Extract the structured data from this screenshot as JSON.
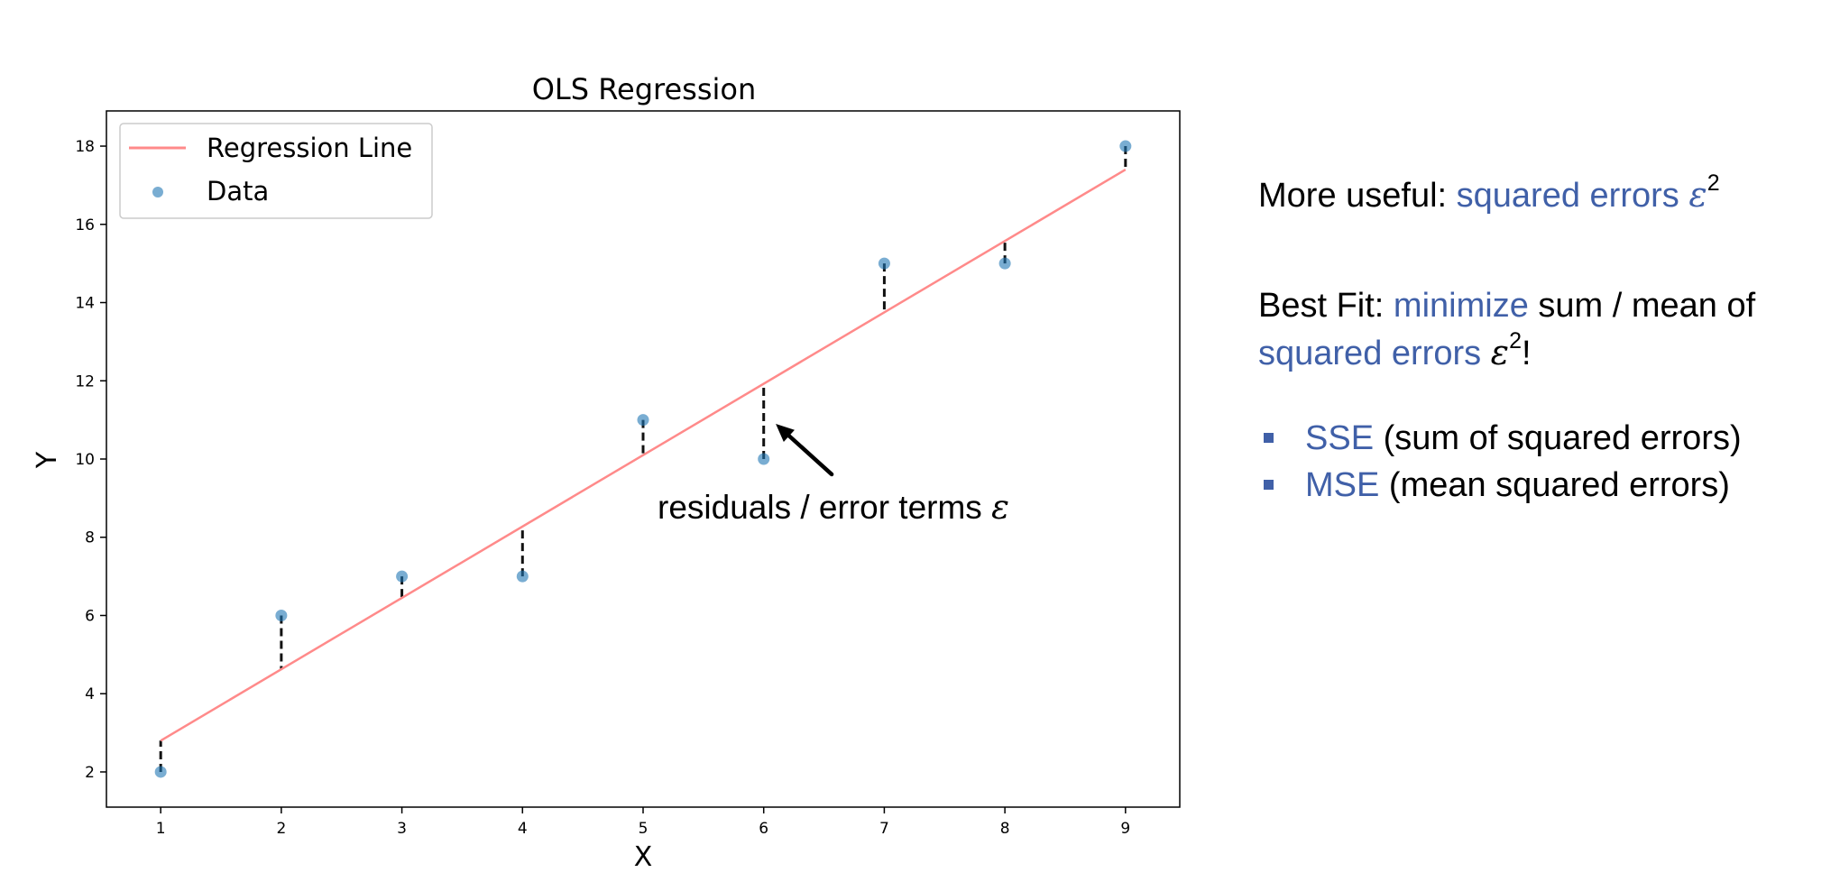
{
  "chart_data": {
    "type": "scatter",
    "title": "OLS Regression",
    "xlabel": "X",
    "ylabel": "Y",
    "xlim": [
      0.55,
      9.45
    ],
    "ylim": [
      1.1,
      18.9
    ],
    "xticks": [
      1,
      2,
      3,
      4,
      5,
      6,
      7,
      8,
      9
    ],
    "yticks": [
      2,
      4,
      6,
      8,
      10,
      12,
      14,
      16,
      18
    ],
    "grid": false,
    "legend_position": "top-left",
    "series": [
      {
        "name": "Data",
        "kind": "scatter",
        "color": "#1f77b4",
        "x": [
          1,
          2,
          3,
          4,
          5,
          6,
          7,
          8,
          9
        ],
        "y": [
          2,
          6,
          7,
          7,
          11,
          10,
          15,
          15,
          18
        ]
      },
      {
        "name": "Regression Line",
        "kind": "line",
        "color": "#ff8a8a",
        "x": [
          1,
          9
        ],
        "y": [
          2.8,
          17.4
        ]
      }
    ],
    "residuals": {
      "style": "dashed",
      "color": "#111111"
    },
    "annotation": {
      "text_prefix": "residuals / error terms ",
      "symbol": "ε",
      "points_to": [
        6.1,
        10.9
      ]
    }
  },
  "side": {
    "useful_prefix": "More useful: ",
    "useful_accent": "squared errors ",
    "epsilon": "ε",
    "squared": "2",
    "bestfit_prefix": "Best Fit: ",
    "bestfit_accent": "minimize",
    "bestfit_mid": " sum / mean of",
    "bestfit_accent2": "squared errors ",
    "bestfit_end": "!",
    "metrics": [
      {
        "abbr": "SSE",
        "desc": " (sum of squared errors)"
      },
      {
        "abbr": "MSE",
        "desc": " (mean squared errors)"
      }
    ]
  },
  "colors": {
    "accent": "#4060a8",
    "data_point": "#1f77b4",
    "regression_line": "#ff8a8a"
  }
}
